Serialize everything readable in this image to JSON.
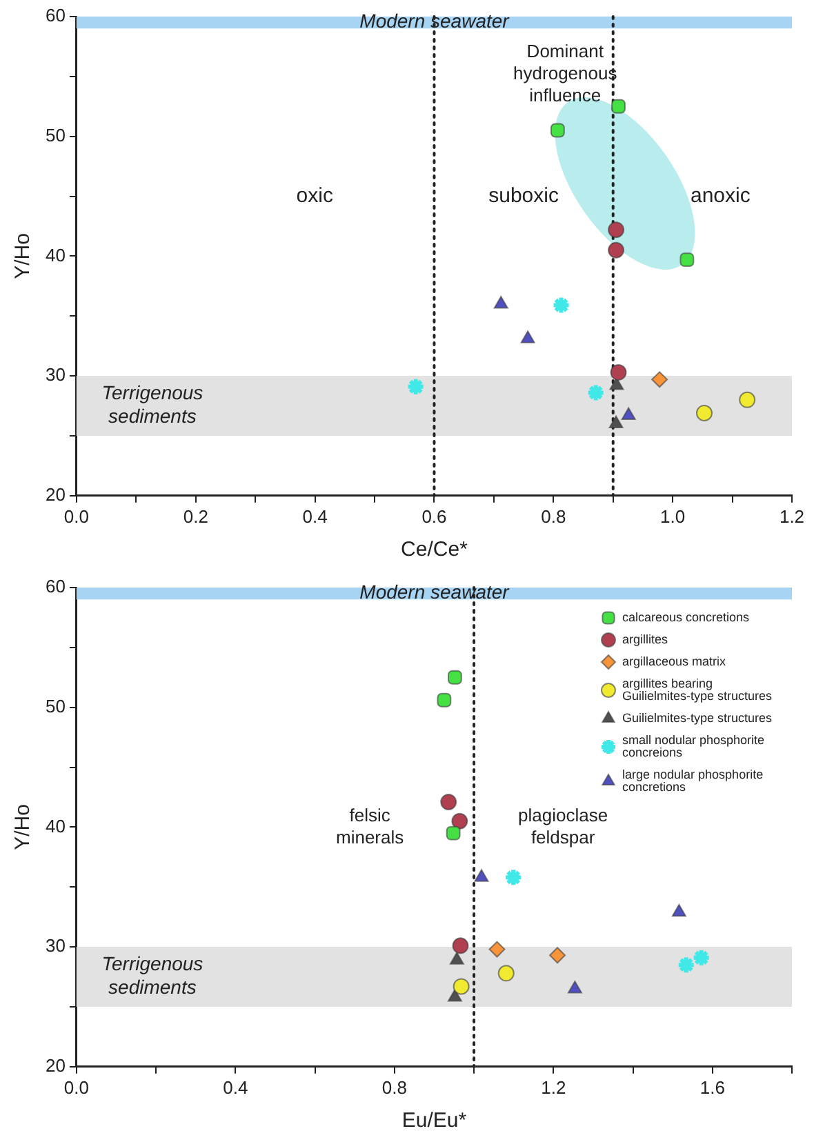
{
  "chart_data": [
    {
      "type": "scatter",
      "xlabel": "Ce/Ce*",
      "ylabel": "Y/Ho",
      "xlim": [
        0,
        1.2
      ],
      "xticks": [
        {
          "value": 0,
          "label": "0.0"
        },
        {
          "value": 0.1,
          "label": null
        },
        0.2,
        {
          "value": 0.3,
          "label": null
        },
        0.4,
        {
          "value": 0.5,
          "label": null
        },
        0.6,
        {
          "value": 0.7,
          "label": null
        },
        0.8,
        {
          "value": 0.9,
          "label": null
        },
        {
          "value": 1,
          "label": "1.0"
        },
        {
          "value": 1.1,
          "label": null
        },
        1.2
      ],
      "ylim": [
        20,
        60
      ],
      "yticks": [
        20,
        {
          "value": 25,
          "label": null
        },
        30,
        {
          "value": 35,
          "label": null
        },
        40,
        {
          "value": 45,
          "label": null
        },
        50,
        {
          "value": 55,
          "label": null
        },
        60
      ],
      "grid": false,
      "legend": false,
      "series": [
        {
          "color": "#44e044",
          "marker": "square",
          "x": [
            0.909,
            0.807,
            1.024
          ],
          "values": [
            52.5,
            50.5,
            39.7
          ]
        },
        {
          "color": "#b04050",
          "marker": "circle",
          "x": [
            0.905,
            0.905,
            0.909
          ],
          "values": [
            42.2,
            40.5,
            30.3
          ]
        },
        {
          "color": "#f7943a",
          "marker": "diamond",
          "x": [
            0.978
          ],
          "values": [
            29.7
          ]
        },
        {
          "color": "#f0ea30",
          "marker": "circle",
          "x": [
            1.053,
            1.125
          ],
          "values": [
            26.9,
            28.0
          ]
        },
        {
          "color": "#505050",
          "marker": "triangle",
          "x": [
            0.906,
            0.905
          ],
          "values": [
            29.2,
            26.0
          ]
        },
        {
          "color": "#40e8e8",
          "marker": "cross",
          "x": [
            0.813,
            0.569,
            0.871
          ],
          "values": [
            35.9,
            29.1,
            28.6
          ]
        },
        {
          "color": "#5050c0",
          "marker": "triangle",
          "x": [
            0.712,
            0.757,
            0.926
          ],
          "values": [
            36.0,
            33.1,
            26.7
          ]
        }
      ],
      "ref_lines": [
        {
          "axis": "x",
          "value": 0.6,
          "line_style": "dotted"
        },
        {
          "axis": "x",
          "value": 0.9,
          "line_style": "dotted"
        }
      ],
      "bands": [
        {
          "axis": "y",
          "from": 59,
          "to": 60,
          "label": "Modern seawater",
          "color": "#a8d4f4"
        },
        {
          "axis": "y",
          "from": 25,
          "to": 30,
          "label": "Terrigenous sediments",
          "color": "#e2e2e2"
        }
      ],
      "annotations": [
        "Dominant hydrogenous influence",
        "oxic",
        "suboxic",
        "anoxic"
      ]
    },
    {
      "type": "scatter",
      "xlabel": "Eu/Eu*",
      "ylabel": "Y/Ho",
      "xlim": [
        0,
        1.8
      ],
      "xticks": [
        {
          "value": 0,
          "label": "0.0"
        },
        {
          "value": 0.2,
          "label": null
        },
        0.4,
        {
          "value": 0.6,
          "label": null
        },
        0.8,
        {
          "value": 1.0,
          "label": null
        },
        1.2,
        {
          "value": 1.4,
          "label": null
        },
        1.6,
        {
          "value": 1.8,
          "label": null
        }
      ],
      "ylim": [
        20,
        60
      ],
      "yticks": [
        20,
        {
          "value": 25,
          "label": null
        },
        30,
        {
          "value": 35,
          "label": null
        },
        40,
        {
          "value": 45,
          "label": null
        },
        50,
        {
          "value": 55,
          "label": null
        },
        60
      ],
      "grid": false,
      "legend": "top right",
      "series": [
        {
          "name": "calcareous concretions",
          "color": "#44e044",
          "marker": "square",
          "x": [
            0.952,
            0.925,
            0.948
          ],
          "values": [
            52.5,
            50.6,
            39.5
          ]
        },
        {
          "name": "argillites",
          "color": "#b04050",
          "marker": "circle",
          "x": [
            0.936,
            0.964,
            0.966
          ],
          "values": [
            42.1,
            40.5,
            30.1
          ]
        },
        {
          "name": "argillaceous matrix",
          "color": "#f7943a",
          "marker": "diamond",
          "x": [
            1.058,
            1.21
          ],
          "values": [
            29.8,
            29.3
          ]
        },
        {
          "name": "argillites bearing Guilielmites-type structures",
          "color": "#f0ea30",
          "marker": "circle",
          "x": [
            1.081,
            0.968
          ],
          "values": [
            27.8,
            26.7
          ]
        },
        {
          "name": "Guilielmites-type structures",
          "color": "#505050",
          "marker": "triangle",
          "x": [
            0.957,
            0.952
          ],
          "values": [
            28.9,
            25.8
          ]
        },
        {
          "name": "small nodular phosphorite concreions",
          "color": "#40e8e8",
          "marker": "cross",
          "x": [
            1.099,
            1.534,
            1.572
          ],
          "values": [
            35.8,
            28.5,
            29.1
          ]
        },
        {
          "name": "large nodular phosphorite concretions",
          "color": "#5050c0",
          "marker": "triangle",
          "x": [
            1.019,
            1.516,
            1.254
          ],
          "values": [
            35.8,
            32.9,
            26.5
          ]
        }
      ],
      "ref_lines": [
        {
          "axis": "x",
          "value": 1.0,
          "line_style": "dotted"
        }
      ],
      "bands": [
        {
          "axis": "y",
          "from": 59,
          "to": 60,
          "label": "Modern seawater",
          "color": "#a8d4f4"
        },
        {
          "axis": "y",
          "from": 25,
          "to": 30,
          "label": "Terrigenous sediments",
          "color": "#e2e2e2"
        }
      ],
      "annotations": [
        "felsic minerals",
        "plagioclase feldspar"
      ]
    }
  ]
}
